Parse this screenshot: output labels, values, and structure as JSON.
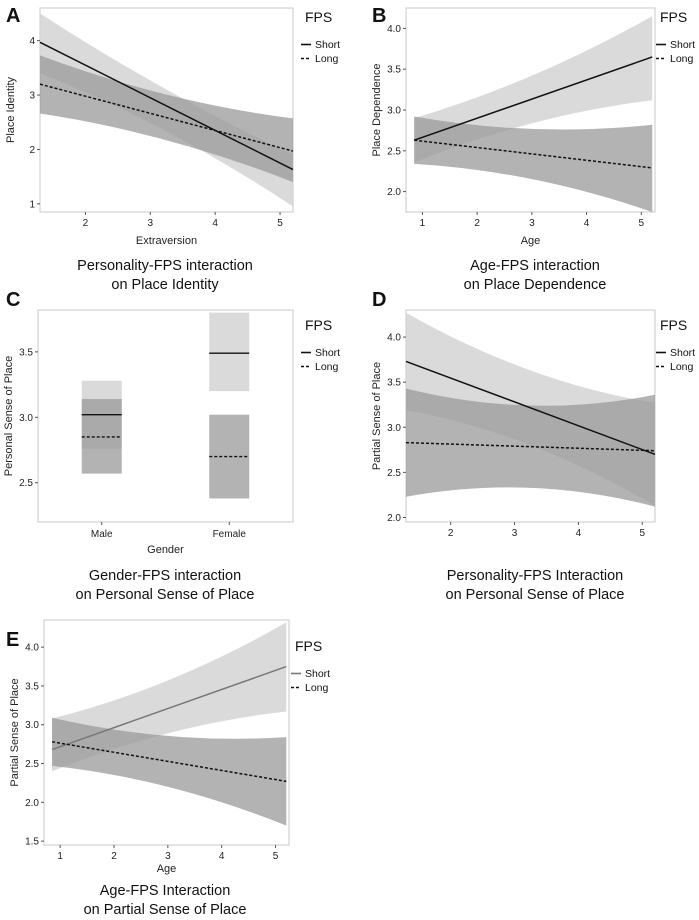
{
  "chart_data": [
    {
      "id": "A",
      "type": "line",
      "letter": "A",
      "caption": [
        "Personality-FPS interaction",
        "on Place Identity"
      ],
      "xlabel": "Extraversion",
      "ylabel": "Place Identity",
      "xlim": [
        1.3,
        5.2
      ],
      "ylim": [
        0.85,
        4.6
      ],
      "xticks": [
        2,
        3,
        4,
        5
      ],
      "yticks": [
        1,
        2,
        3,
        4
      ],
      "legend": {
        "title": "FPS",
        "entries": [
          "Short",
          "Long"
        ]
      },
      "series": [
        {
          "name": "Short",
          "style": "solid",
          "color": "#111111",
          "x": [
            1.3,
            5.2
          ],
          "y": [
            3.97,
            1.63
          ],
          "ci_upper": [
            4.5,
            1.9
          ],
          "ci_lower": [
            3.4,
            0.95
          ],
          "band_fill": "#d3d3d3"
        },
        {
          "name": "Long",
          "style": "dashed",
          "color": "#111111",
          "x": [
            1.3,
            5.2
          ],
          "y": [
            3.2,
            1.97
          ],
          "ci_upper": [
            3.73,
            2.57
          ],
          "ci_lower": [
            2.66,
            1.4
          ],
          "band_fill": "#9a9a9a"
        }
      ]
    },
    {
      "id": "B",
      "type": "line",
      "letter": "B",
      "caption": [
        "Age-FPS interaction",
        "on Place Dependence"
      ],
      "xlabel": "Age",
      "ylabel": "Place Dependence",
      "xlim": [
        0.7,
        5.25
      ],
      "ylim": [
        1.75,
        4.25
      ],
      "xticks": [
        1,
        2,
        3,
        4,
        5
      ],
      "yticks": [
        2.0,
        2.5,
        3.0,
        3.5,
        4.0
      ],
      "legend": {
        "title": "FPS",
        "entries": [
          "Short",
          "Long"
        ]
      },
      "series": [
        {
          "name": "Short",
          "style": "solid",
          "color": "#111111",
          "x": [
            0.85,
            5.2
          ],
          "y": [
            2.63,
            3.65
          ],
          "ci_upper": [
            2.9,
            4.15
          ],
          "ci_lower": [
            2.36,
            3.12
          ],
          "band_fill": "#d3d3d3"
        },
        {
          "name": "Long",
          "style": "dashed",
          "color": "#111111",
          "x": [
            0.85,
            5.2
          ],
          "y": [
            2.63,
            2.29
          ],
          "ci_upper": [
            2.92,
            2.82
          ],
          "ci_lower": [
            2.34,
            1.75
          ],
          "band_fill": "#9a9a9a"
        }
      ]
    },
    {
      "id": "C",
      "type": "bar",
      "letter": "C",
      "caption": [
        "Gender-FPS interaction",
        "on Personal Sense of Place"
      ],
      "xlabel": "Gender",
      "ylabel": "Personal Sense of Place",
      "categories": [
        "Male",
        "Female"
      ],
      "ylim": [
        2.2,
        3.82
      ],
      "yticks": [
        2.5,
        3.0,
        3.5
      ],
      "legend": {
        "title": "FPS",
        "entries": [
          "Short",
          "Long"
        ]
      },
      "series": [
        {
          "name": "Short",
          "style": "solid",
          "color": "#111111",
          "values": [
            3.02,
            3.49
          ],
          "ci_upper": [
            3.28,
            3.8
          ],
          "ci_lower": [
            2.76,
            3.2
          ],
          "band_fill": "#d3d3d3"
        },
        {
          "name": "Long",
          "style": "dashed",
          "color": "#111111",
          "values": [
            2.85,
            2.7
          ],
          "ci_upper": [
            3.14,
            3.02
          ],
          "ci_lower": [
            2.57,
            2.38
          ],
          "band_fill": "#9a9a9a"
        }
      ]
    },
    {
      "id": "D",
      "type": "line",
      "letter": "D",
      "caption": [
        "Personality-FPS Interaction",
        "on Personal Sense of Place"
      ],
      "xlabel": "",
      "ylabel": "Partial Sense of Place",
      "xlim": [
        1.3,
        5.2
      ],
      "ylim": [
        1.95,
        4.3
      ],
      "xticks": [
        2,
        3,
        4,
        5
      ],
      "yticks": [
        2.0,
        2.5,
        3.0,
        3.5,
        4.0
      ],
      "legend": {
        "title": "FPS",
        "entries": [
          "Short",
          "Long"
        ]
      },
      "series": [
        {
          "name": "Short",
          "style": "solid",
          "color": "#111111",
          "x": [
            1.3,
            5.2
          ],
          "y": [
            3.73,
            2.7
          ],
          "ci_upper": [
            4.27,
            3.27
          ],
          "ci_lower": [
            3.19,
            2.13
          ],
          "band_fill": "#d3d3d3"
        },
        {
          "name": "Long",
          "style": "dashed",
          "color": "#111111",
          "x": [
            1.3,
            5.2
          ],
          "y": [
            2.83,
            2.74
          ],
          "ci_upper": [
            3.43,
            3.36
          ],
          "ci_lower": [
            2.23,
            2.12
          ],
          "band_fill": "#9a9a9a"
        }
      ]
    },
    {
      "id": "E",
      "type": "line",
      "letter": "E",
      "caption": [
        "Age-FPS Interaction",
        "on Partial Sense of Place"
      ],
      "xlabel": "Age",
      "ylabel": "Partial Sense of Place",
      "xlim": [
        0.7,
        5.25
      ],
      "ylim": [
        1.45,
        4.35
      ],
      "xticks": [
        1,
        2,
        3,
        4,
        5
      ],
      "yticks": [
        1.5,
        2.0,
        2.5,
        3.0,
        3.5,
        4.0
      ],
      "legend": {
        "title": "FPS",
        "entries": [
          "Short",
          "Long"
        ]
      },
      "series": [
        {
          "name": "Short",
          "style": "solid",
          "color": "#777777",
          "x": [
            0.85,
            5.2
          ],
          "y": [
            2.68,
            3.75
          ],
          "ci_upper": [
            3.08,
            4.32
          ],
          "ci_lower": [
            2.4,
            3.17
          ],
          "band_fill": "#d3d3d3"
        },
        {
          "name": "Long",
          "style": "dashed",
          "color": "#111111",
          "x": [
            0.85,
            5.2
          ],
          "y": [
            2.78,
            2.27
          ],
          "ci_upper": [
            3.09,
            2.84
          ],
          "ci_lower": [
            2.47,
            1.7
          ],
          "band_fill": "#9a9a9a"
        }
      ]
    }
  ]
}
